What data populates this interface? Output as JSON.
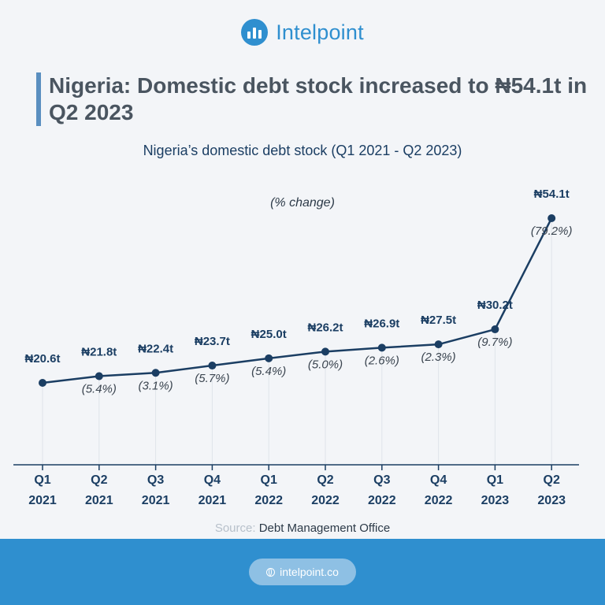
{
  "brand": {
    "name": "Intelpoint",
    "url": "intelpoint.co"
  },
  "headline": "Nigeria: Domestic debt stock increased to ₦54.1t in Q2 2023",
  "source": {
    "prefix": "Source:",
    "text": "Debt Management Office"
  },
  "colors": {
    "brand": "#2f8fcf",
    "line": "#1b3e63",
    "headline": "#4a5560"
  },
  "chart_data": {
    "type": "line",
    "title": "Nigeria’s domestic debt stock (Q1 2021 - Q2 2023)",
    "unit_note": "(% change)",
    "categories": [
      [
        "Q1",
        "2021"
      ],
      [
        "Q2",
        "2021"
      ],
      [
        "Q3",
        "2021"
      ],
      [
        "Q4",
        "2021"
      ],
      [
        "Q1",
        "2022"
      ],
      [
        "Q2",
        "2022"
      ],
      [
        "Q3",
        "2022"
      ],
      [
        "Q4",
        "2022"
      ],
      [
        "Q1",
        "2023"
      ],
      [
        "Q2",
        "2023"
      ]
    ],
    "values": [
      20.6,
      21.8,
      22.4,
      23.7,
      25.0,
      26.2,
      26.9,
      27.5,
      30.2,
      54.1
    ],
    "value_labels": [
      "₦20.6t",
      "₦21.8t",
      "₦22.4t",
      "₦23.7t",
      "₦25.0t",
      "₦26.2t",
      "₦26.9t",
      "₦27.5t",
      "₦30.2t",
      "₦54.1t"
    ],
    "pct_change_labels": [
      "",
      "(5.4%)",
      "(3.1%)",
      "(5.7%)",
      "(5.4%)",
      "(5.0%)",
      "(2.6%)",
      "(2.3%)",
      "(9.7%)",
      "(79.2%)"
    ],
    "grid": false,
    "legend": "none"
  }
}
